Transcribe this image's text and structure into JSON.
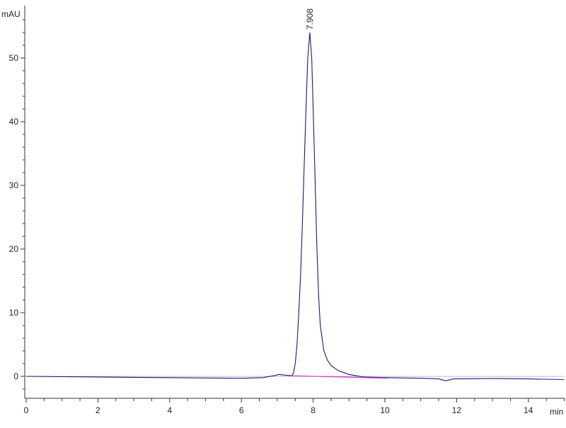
{
  "chart_data": {
    "type": "line",
    "title": "",
    "xlabel": "min",
    "ylabel": "mAU",
    "xlim": [
      0,
      15
    ],
    "ylim": [
      -3.7,
      58
    ],
    "x_ticks": [
      0,
      2,
      4,
      6,
      8,
      10,
      12,
      14
    ],
    "y_ticks": [
      0,
      10,
      20,
      30,
      40,
      50
    ],
    "grid": false,
    "colors": {
      "signal": "#1a1a6e",
      "baseline": "#d040d0",
      "axis": "#333333"
    },
    "series": [
      {
        "points": [
          [
            0,
            0
          ],
          [
            1,
            -0.05
          ],
          [
            2,
            -0.1
          ],
          [
            3,
            -0.15
          ],
          [
            4,
            -0.2
          ],
          [
            5,
            -0.25
          ],
          [
            6,
            -0.3
          ],
          [
            6.6,
            -0.2
          ],
          [
            6.9,
            0.1
          ],
          [
            7.05,
            0.3
          ],
          [
            7.2,
            0.2
          ],
          [
            7.4,
            0.1
          ],
          [
            7.45,
            0.5
          ],
          [
            7.5,
            2
          ],
          [
            7.55,
            5
          ],
          [
            7.6,
            10
          ],
          [
            7.65,
            16
          ],
          [
            7.7,
            24
          ],
          [
            7.75,
            33
          ],
          [
            7.8,
            42
          ],
          [
            7.85,
            50
          ],
          [
            7.908,
            54
          ],
          [
            7.96,
            50
          ],
          [
            8.0,
            42
          ],
          [
            8.05,
            32
          ],
          [
            8.1,
            21
          ],
          [
            8.15,
            13
          ],
          [
            8.2,
            8
          ],
          [
            8.3,
            4
          ],
          [
            8.4,
            2.5
          ],
          [
            8.5,
            1.7
          ],
          [
            8.7,
            0.9
          ],
          [
            9.0,
            0.3
          ],
          [
            9.4,
            -0.1
          ],
          [
            10,
            -0.2
          ],
          [
            11,
            -0.3
          ],
          [
            11.5,
            -0.4
          ],
          [
            11.7,
            -0.7
          ],
          [
            11.9,
            -0.4
          ],
          [
            13,
            -0.35
          ],
          [
            14,
            -0.4
          ],
          [
            15,
            -0.5
          ]
        ]
      }
    ],
    "baseline_segment": [
      [
        7.4,
        0.1
      ],
      [
        10.1,
        -0.3
      ]
    ],
    "annotations": [
      {
        "x": 7.908,
        "y": 54,
        "label": "7.908"
      }
    ]
  }
}
